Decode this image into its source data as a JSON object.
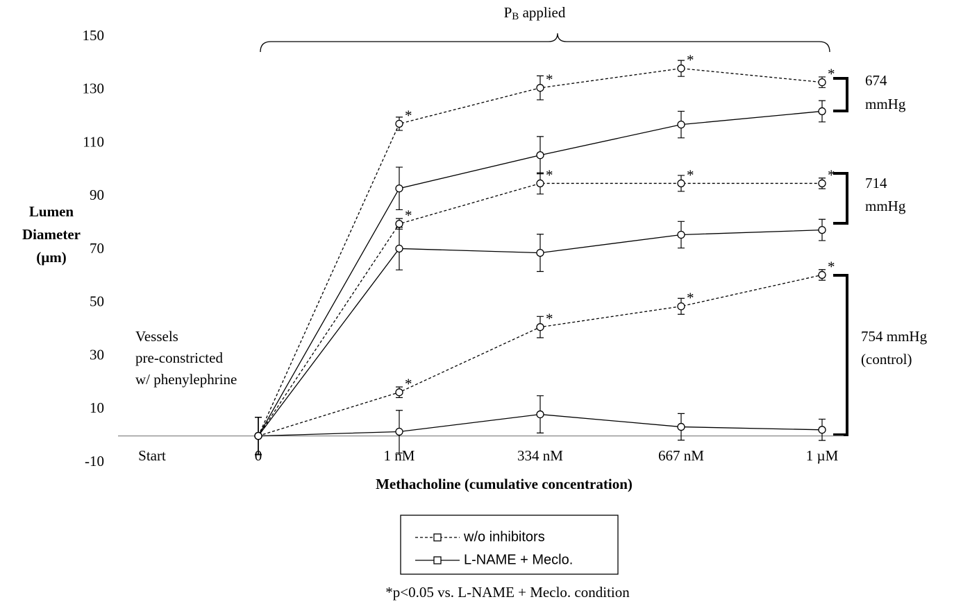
{
  "chart_data": {
    "type": "line",
    "y_label": [
      "Lumen",
      "Diameter",
      "(µm)"
    ],
    "x_label": "Methacholine  (cumulative concentration)",
    "categories": [
      "Start",
      "0",
      "1 nM",
      "334 nM",
      "667 nM",
      "1 µM"
    ],
    "ylim": [
      -10,
      150
    ],
    "yticks": [
      -10,
      10,
      30,
      50,
      70,
      90,
      110,
      130,
      150
    ],
    "legend": [
      {
        "name": "w/o inhibitors",
        "dash": "4,3"
      },
      {
        "name": "L-NAME + Meclo.",
        "dash": "none"
      }
    ],
    "color": "#000000",
    "series": [
      {
        "legend": 0,
        "values": [
          null,
          0,
          117.3,
          130.8,
          138.1,
          132.9
        ],
        "errors": [
          null,
          7,
          2.5,
          4.5,
          3,
          2
        ],
        "marks": [
          null,
          null,
          "*",
          "*",
          "*",
          "*"
        ]
      },
      {
        "legend": 1,
        "values": [
          null,
          0,
          93,
          105.5,
          117,
          122
        ],
        "errors": [
          null,
          7,
          8,
          7,
          5,
          4
        ],
        "marks": [
          null,
          null,
          null,
          null,
          null,
          null
        ]
      },
      {
        "legend": 0,
        "values": [
          null,
          0,
          79.7,
          94.9,
          94.9,
          94.9
        ],
        "errors": [
          null,
          7,
          2,
          4,
          3,
          2
        ],
        "marks": [
          null,
          null,
          "*",
          "*",
          "*",
          "*"
        ]
      },
      {
        "legend": 1,
        "values": [
          null,
          0,
          70.4,
          68.8,
          75.6,
          77.4
        ],
        "errors": [
          null,
          7,
          8,
          7,
          5,
          4
        ],
        "marks": [
          null,
          null,
          null,
          null,
          null,
          null
        ]
      },
      {
        "legend": 0,
        "values": [
          null,
          0,
          16.4,
          40.9,
          48.7,
          60.5
        ],
        "errors": [
          null,
          7,
          2,
          4,
          3,
          2
        ],
        "marks": [
          null,
          null,
          "*",
          "*",
          "*",
          "*"
        ]
      },
      {
        "legend": 1,
        "values": [
          null,
          0,
          1.6,
          8.1,
          3.4,
          2.3
        ],
        "errors": [
          null,
          7,
          8,
          7,
          5,
          4
        ],
        "marks": [
          null,
          null,
          null,
          null,
          null,
          null
        ]
      }
    ],
    "top_label": {
      "main": "P",
      "sub": "B",
      "rest": " applied"
    },
    "groups": [
      [
        "674",
        "mmHg"
      ],
      [
        "714",
        "mmHg"
      ],
      [
        "754 mmHg",
        "(control)"
      ]
    ],
    "left_note": [
      "Vessels",
      "pre-constricted",
      "w/ phenylephrine"
    ],
    "footnote": "*p<0.05 vs. L-NAME + Meclo. condition"
  }
}
